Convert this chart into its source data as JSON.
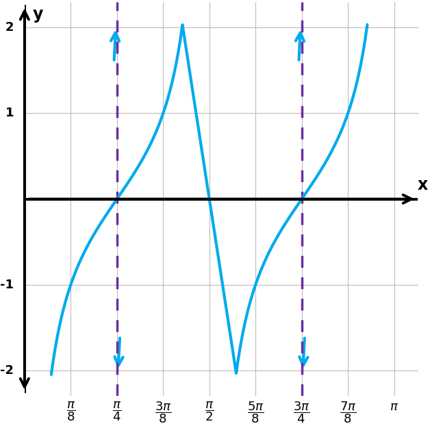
{
  "title": "",
  "xlabel": "x",
  "ylabel": "y",
  "xlim_left": 0.0,
  "xlim_right": 3.35,
  "ylim": [
    -2.3,
    2.3
  ],
  "plot_ylim": [
    -2.05,
    2.05
  ],
  "yticks": [
    -2,
    -1,
    1,
    2
  ],
  "xticks_values": [
    0.392699,
    0.785398,
    1.178097,
    1.570796,
    1.963495,
    2.356194,
    2.748894,
    3.141593
  ],
  "asymptotes": [
    0.785398,
    2.356194
  ],
  "curve_color": "#00AAEE",
  "asymptote_color": "#6B2FA0",
  "curve_linewidth": 3.0,
  "asymptote_linewidth": 2.5,
  "grid_color": "#BBBBBB",
  "background_color": "#FFFFFF",
  "axis_lw": 2.8
}
